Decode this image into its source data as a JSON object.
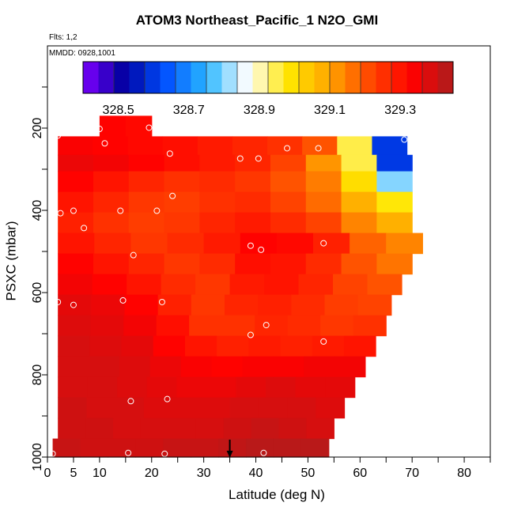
{
  "chart_data": {
    "type": "heatmap",
    "title": "ATOM3 Northeast_Pacific_1 N2O_GMI",
    "subtitle": "Flts: 1,2",
    "annotation": "MMDD: 0928,1001",
    "xlabel": "Latitude (deg N)",
    "ylabel": "PSXC (mbar)",
    "xlim": [
      0,
      85
    ],
    "ylim": [
      1000,
      0
    ],
    "x_ticks": [
      0,
      5,
      10,
      20,
      30,
      40,
      50,
      60,
      70,
      80
    ],
    "y_ticks": [
      200,
      400,
      600,
      800,
      1000
    ],
    "colorbar": {
      "ticks": [
        328.5,
        328.7,
        328.9,
        329.1,
        329.3
      ],
      "range": [
        328.4,
        329.45
      ],
      "colors": [
        "#7f00ff",
        "#0000a0",
        "#0050ff",
        "#29b6ff",
        "#ffffff",
        "#ffe600",
        "#ffa500",
        "#ff4500",
        "#ff0000",
        "#aa1e1e"
      ]
    },
    "bands": [
      {
        "p_top": 170,
        "p_bot": 220,
        "lat_start": 10,
        "lat_end": 20,
        "values": [
          329.33,
          329.32
        ]
      },
      {
        "p_top": 220,
        "p_bot": 265,
        "lat_start": 2,
        "lat_end": 69,
        "values": [
          329.34,
          329.33,
          329.32,
          329.31,
          329.29,
          329.27,
          329.25,
          329.2,
          328.95,
          328.6
        ]
      },
      {
        "p_top": 265,
        "p_bot": 305,
        "lat_start": 2,
        "lat_end": 70,
        "values": [
          329.36,
          329.35,
          329.33,
          329.31,
          329.29,
          329.27,
          329.22,
          329.12,
          328.95,
          328.6
        ]
      },
      {
        "p_top": 305,
        "p_bot": 355,
        "lat_start": 2,
        "lat_end": 70,
        "values": [
          329.33,
          329.3,
          329.27,
          329.25,
          329.26,
          329.24,
          329.2,
          329.15,
          329.0,
          328.8
        ]
      },
      {
        "p_top": 355,
        "p_bot": 405,
        "lat_start": 2,
        "lat_end": 70,
        "values": [
          329.3,
          329.27,
          329.24,
          329.23,
          329.25,
          329.26,
          329.22,
          329.17,
          329.08,
          328.98
        ]
      },
      {
        "p_top": 405,
        "p_bot": 455,
        "lat_start": 2,
        "lat_end": 70,
        "values": [
          329.28,
          329.25,
          329.23,
          329.24,
          329.27,
          329.29,
          329.26,
          329.22,
          329.14,
          329.08
        ]
      },
      {
        "p_top": 455,
        "p_bot": 505,
        "lat_start": 2,
        "lat_end": 72,
        "values": [
          329.3,
          329.27,
          329.24,
          329.26,
          329.29,
          329.33,
          329.32,
          329.28,
          329.18,
          329.14
        ]
      },
      {
        "p_top": 505,
        "p_bot": 555,
        "lat_start": 2,
        "lat_end": 70,
        "values": [
          329.33,
          329.3,
          329.27,
          329.24,
          329.26,
          329.31,
          329.3,
          329.26,
          329.2,
          329.16
        ]
      },
      {
        "p_top": 555,
        "p_bot": 605,
        "lat_start": 2,
        "lat_end": 68,
        "values": [
          329.35,
          329.33,
          329.3,
          329.26,
          329.24,
          329.29,
          329.3,
          329.27,
          329.22,
          329.2
        ]
      },
      {
        "p_top": 605,
        "p_bot": 655,
        "lat_start": 2,
        "lat_end": 66,
        "values": [
          329.37,
          329.36,
          329.33,
          329.28,
          329.24,
          329.27,
          329.28,
          329.26,
          329.23,
          329.22
        ]
      },
      {
        "p_top": 655,
        "p_bot": 705,
        "lat_start": 2,
        "lat_end": 65,
        "values": [
          329.38,
          329.37,
          329.35,
          329.31,
          329.25,
          329.25,
          329.27,
          329.26,
          329.24,
          329.25
        ]
      },
      {
        "p_top": 705,
        "p_bot": 755,
        "lat_start": 2,
        "lat_end": 63,
        "values": [
          329.39,
          329.38,
          329.37,
          329.33,
          329.3,
          329.28,
          329.29,
          329.28,
          329.29,
          329.3
        ]
      },
      {
        "p_top": 755,
        "p_bot": 805,
        "lat_start": 2,
        "lat_end": 61,
        "values": [
          329.39,
          329.39,
          329.38,
          329.36,
          329.34,
          329.33,
          329.34,
          329.34,
          329.35,
          329.35
        ]
      },
      {
        "p_top": 805,
        "p_bot": 855,
        "lat_start": 2,
        "lat_end": 59,
        "values": [
          329.39,
          329.39,
          329.38,
          329.37,
          329.36,
          329.36,
          329.37,
          329.38,
          329.37,
          329.37
        ]
      },
      {
        "p_top": 855,
        "p_bot": 905,
        "lat_start": 2,
        "lat_end": 57,
        "values": [
          329.4,
          329.39,
          329.39,
          329.38,
          329.38,
          329.38,
          329.39,
          329.39,
          329.39,
          329.38
        ]
      },
      {
        "p_top": 905,
        "p_bot": 955,
        "lat_start": 2,
        "lat_end": 55,
        "values": [
          329.4,
          329.4,
          329.39,
          329.39,
          329.39,
          329.39,
          329.4,
          329.41,
          329.4,
          329.39
        ]
      },
      {
        "p_top": 955,
        "p_bot": 1000,
        "lat_start": 1,
        "lat_end": 54,
        "values": [
          329.41,
          329.4,
          329.4,
          329.4,
          329.41,
          329.41,
          329.42,
          329.43,
          329.43,
          329.43
        ]
      }
    ],
    "sample_points": [
      [
        2,
        218
      ],
      [
        10,
        202
      ],
      [
        19.5,
        199
      ],
      [
        11,
        237
      ],
      [
        68.5,
        228
      ],
      [
        23.5,
        262
      ],
      [
        46,
        249
      ],
      [
        52,
        249
      ],
      [
        37,
        274
      ],
      [
        40.5,
        274
      ],
      [
        24,
        365
      ],
      [
        2.5,
        407
      ],
      [
        5,
        401
      ],
      [
        14,
        401
      ],
      [
        21,
        401
      ],
      [
        7,
        443
      ],
      [
        39,
        486
      ],
      [
        41,
        496
      ],
      [
        53,
        480
      ],
      [
        16.5,
        509
      ],
      [
        2,
        623
      ],
      [
        5,
        630
      ],
      [
        14.5,
        619
      ],
      [
        22,
        623
      ],
      [
        42,
        679
      ],
      [
        39,
        703
      ],
      [
        53,
        719
      ],
      [
        16,
        864
      ],
      [
        23,
        859
      ],
      [
        1,
        992
      ],
      [
        15.5,
        990
      ],
      [
        22.5,
        992
      ],
      [
        41.5,
        990
      ]
    ],
    "arrow_marker": {
      "lat": 35,
      "p": 1000
    }
  }
}
